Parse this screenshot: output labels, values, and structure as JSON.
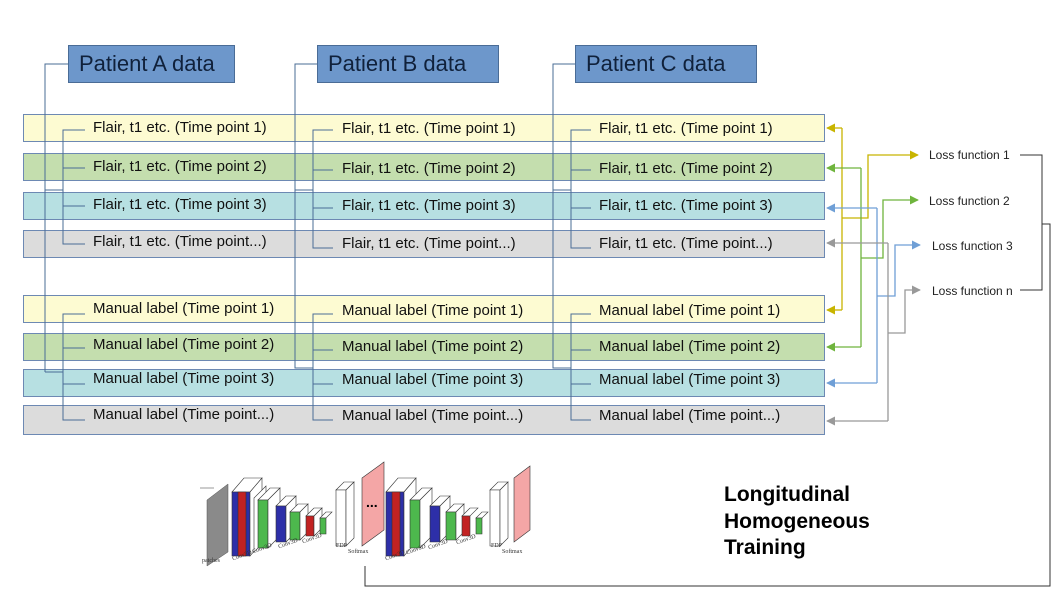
{
  "patients": [
    {
      "name": "Patient A data"
    },
    {
      "name": "Patient B data"
    },
    {
      "name": "Patient C data"
    }
  ],
  "image_rows": [
    "Flair, t1 etc. (Time point 1)",
    "Flair, t1 etc. (Time point 2)",
    "Flair, t1 etc. (Time point 3)",
    "Flair, t1 etc. (Time point...)"
  ],
  "label_rows": [
    "Manual label (Time point 1)",
    "Manual label (Time point 2)",
    "Manual label (Time point 3)",
    "Manual label (Time point...)"
  ],
  "loss_functions": [
    "Loss function 1",
    "Loss function 2",
    "Loss function 3",
    "Loss function n"
  ],
  "network_figure": {
    "layer_labels_1": [
      "patches",
      "Conv3D",
      "Conv3D",
      "Conv3D",
      "Conv3D",
      "FDP",
      "Softmax"
    ],
    "layer_labels_2": [
      "Conv3D",
      "Conv3D",
      "Conv3D",
      "Conv3D",
      "FDP",
      "Softmax"
    ],
    "ellipsis": "..."
  },
  "title_lines": [
    "Longitudinal",
    "Homogeneous",
    "Training"
  ],
  "colors": {
    "row_1": "#fdfbd2",
    "row_2": "#c4deae",
    "row_3": "#b7e0e2",
    "row_4": "#dcdcdc",
    "patient_box": "#6d97cb",
    "arrow_1": "#c8b400",
    "arrow_2": "#6fb43d",
    "arrow_3": "#6f9fd6",
    "arrow_n": "#999999",
    "connector": "#4a6c96"
  }
}
